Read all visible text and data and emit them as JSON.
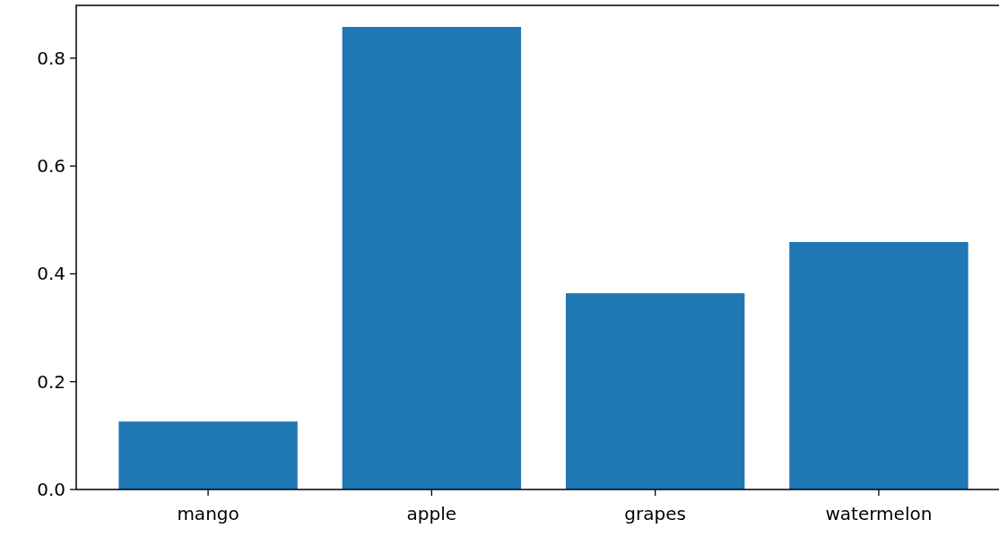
{
  "chart_data": {
    "type": "bar",
    "categories": [
      "mango",
      "apple",
      "grapes",
      "watermelon"
    ],
    "values": [
      0.126,
      0.858,
      0.364,
      0.459
    ],
    "color": "#1f77b4",
    "ylim": [
      0,
      0.898
    ],
    "yticks": [
      {
        "value": 0,
        "label": "0.0"
      },
      {
        "value": 0.2,
        "label": "0.2"
      },
      {
        "value": 0.4,
        "label": "0.4"
      },
      {
        "value": 0.6,
        "label": "0.6"
      },
      {
        "value": 0.8,
        "label": "0.8"
      }
    ],
    "grid": false
  }
}
